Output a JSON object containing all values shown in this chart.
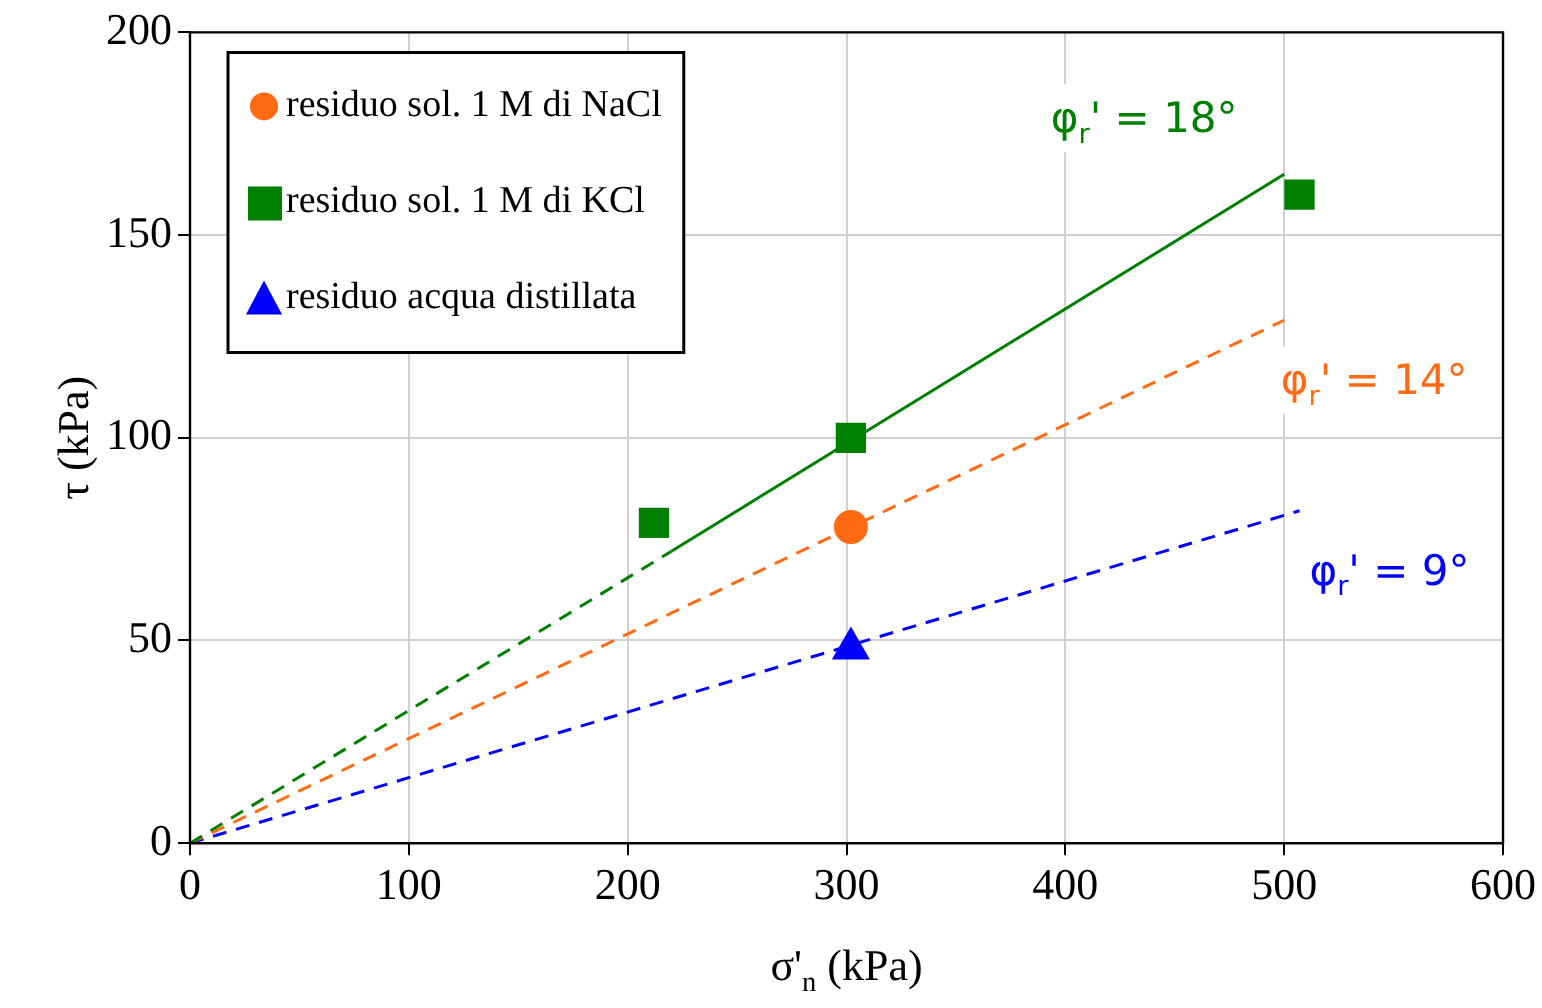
{
  "chart_data": {
    "type": "scatter",
    "xlabel": "σ'$_{n}$ (kPa)",
    "ylabel": "τ (kPa)",
    "xlim": [
      0,
      600
    ],
    "xticks": [
      0,
      100,
      200,
      300,
      400,
      500,
      600
    ],
    "ylim": [
      0,
      200
    ],
    "yticks": [
      0,
      50,
      100,
      150,
      200
    ],
    "grid": true,
    "legend": "top left",
    "series": [
      {
        "name": "residuo sol. 1 M di NaCl",
        "color": "#ff6a13",
        "marker": "circle",
        "x": [
          302
        ],
        "values": [
          78
        ]
      },
      {
        "name": "residuo sol. 1 M di KCl",
        "color": "#008000",
        "marker": "square",
        "x": [
          212,
          302,
          507
        ],
        "values": [
          79,
          100,
          160
        ]
      },
      {
        "name": "residuo acqua distillata",
        "color": "#0000ff",
        "marker": "triangle",
        "x": [
          302
        ],
        "values": [
          48
        ]
      },
      {
        "color": "#008000",
        "type": "line",
        "line_style": "dashed",
        "x": [
          0,
          220
        ],
        "values": [
          0,
          72
        ]
      },
      {
        "name": "φ$_{r}$' = 18°",
        "color": "#008000",
        "type": "line",
        "line_style": "solid",
        "x": [
          220,
          500
        ],
        "values": [
          72,
          165
        ]
      },
      {
        "name": "φ$_{r}$' = 14°",
        "color": "#ff6a13",
        "type": "line",
        "line_style": "dashed",
        "x": [
          0,
          500
        ],
        "values": [
          0,
          129
        ]
      },
      {
        "name": "φ$_{r}$' = 9°",
        "color": "#0000ff",
        "type": "line",
        "line_style": "dashed",
        "x": [
          0,
          507
        ],
        "values": [
          0,
          82
        ]
      }
    ]
  }
}
